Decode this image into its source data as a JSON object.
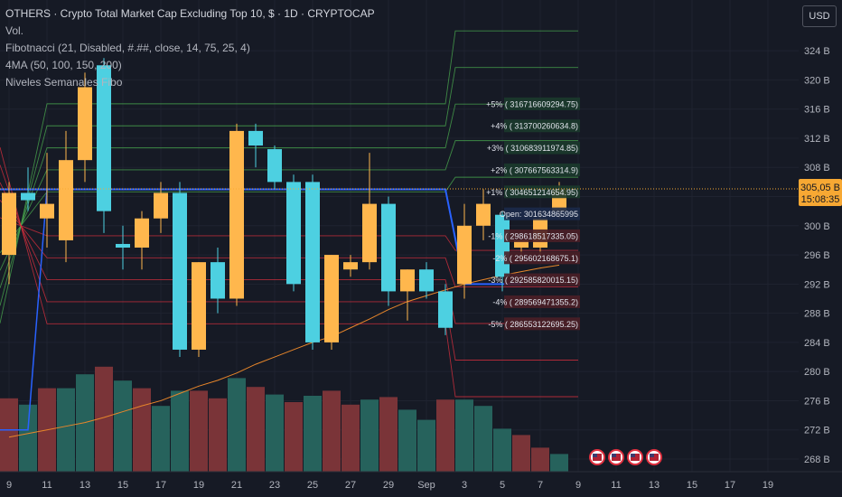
{
  "header": {
    "title": "OTHERS · Crypto Total Market Cap Excluding Top 10, $ · 1D · CRYPTOCAP",
    "indicators": [
      "Vol.",
      "Fibotnacci (21, Disabled, #.##, close, 14, 75, 25, 4)",
      "4MA (50, 100, 150, 200)",
      "Niveles Semanales Fibo"
    ]
  },
  "currency_button": "USD",
  "price_tag": {
    "price": "305,05 B",
    "countdown": "15:08:35"
  },
  "colors": {
    "bg": "#161a25",
    "grid": "#1f2330",
    "up": "#ffb74d",
    "down": "#4dd0e1",
    "vol_up": "#26625c",
    "vol_down": "#7a3438",
    "blue": "#2962ff",
    "ma": "#e8862a",
    "green_lvl": "#4caf50",
    "red_lvl": "#e0303f",
    "tag": "#f7a833",
    "muted": "#b2b5be"
  },
  "chart_data": {
    "type": "candlestick",
    "y_axis": {
      "unit": "B",
      "ylim": [
        266,
        326
      ],
      "ticks": [
        "324 B",
        "320 B",
        "316 B",
        "312 B",
        "308 B",
        "304 B",
        "300 B",
        "296 B",
        "292 B",
        "288 B",
        "284 B",
        "280 B",
        "276 B",
        "272 B",
        "268 B"
      ]
    },
    "x_axis": {
      "ticks": [
        "9",
        "11",
        "13",
        "15",
        "17",
        "19",
        "21",
        "23",
        "25",
        "27",
        "29",
        "Sep",
        "3",
        "5",
        "7",
        "9",
        "11",
        "13",
        "15",
        "17",
        "19"
      ]
    },
    "candles": [
      {
        "o": 296,
        "h": 306,
        "l": 292,
        "c": 304.5
      },
      {
        "o": 304.5,
        "h": 308,
        "l": 302,
        "c": 303.5
      },
      {
        "o": 301,
        "h": 310,
        "l": 297,
        "c": 303
      },
      {
        "o": 298,
        "h": 313,
        "l": 295,
        "c": 309
      },
      {
        "o": 309,
        "h": 321,
        "l": 306,
        "c": 319
      },
      {
        "o": 322,
        "h": 323,
        "l": 299,
        "c": 302
      },
      {
        "o": 297.5,
        "h": 300,
        "l": 294,
        "c": 297
      },
      {
        "o": 297,
        "h": 302,
        "l": 294,
        "c": 301
      },
      {
        "o": 301,
        "h": 306,
        "l": 299,
        "c": 304.5
      },
      {
        "o": 304.5,
        "h": 306,
        "l": 282,
        "c": 283
      },
      {
        "o": 283,
        "h": 295,
        "l": 282,
        "c": 295
      },
      {
        "o": 295,
        "h": 297,
        "l": 288,
        "c": 290
      },
      {
        "o": 290,
        "h": 314,
        "l": 289,
        "c": 313
      },
      {
        "o": 313,
        "h": 314,
        "l": 308,
        "c": 311
      },
      {
        "o": 310.5,
        "h": 311,
        "l": 305,
        "c": 306
      },
      {
        "o": 306,
        "h": 307,
        "l": 291,
        "c": 292
      },
      {
        "o": 306,
        "h": 307,
        "l": 283,
        "c": 284
      },
      {
        "o": 284,
        "h": 296,
        "l": 283,
        "c": 296
      },
      {
        "o": 294,
        "h": 296,
        "l": 293,
        "c": 295
      },
      {
        "o": 295,
        "h": 310,
        "l": 294,
        "c": 303
      },
      {
        "o": 303,
        "h": 304,
        "l": 289,
        "c": 291
      },
      {
        "o": 291,
        "h": 294,
        "l": 287,
        "c": 294
      },
      {
        "o": 294,
        "h": 295,
        "l": 290,
        "c": 291
      },
      {
        "o": 291,
        "h": 292,
        "l": 285,
        "c": 286
      },
      {
        "o": 292,
        "h": 303,
        "l": 290,
        "c": 300
      },
      {
        "o": 300,
        "h": 305,
        "l": 298,
        "c": 303
      },
      {
        "o": 301.5,
        "h": 302,
        "l": 291,
        "c": 293
      },
      {
        "o": 297,
        "h": 298,
        "l": 295,
        "c": 298
      },
      {
        "o": 297,
        "h": 302,
        "l": 296,
        "c": 301
      },
      {
        "o": 302,
        "h": 306,
        "l": 301,
        "c": 305
      }
    ],
    "volume": [
      {
        "v": 0.58,
        "dir": "down"
      },
      {
        "v": 0.53,
        "dir": "up"
      },
      {
        "v": 0.66,
        "dir": "down"
      },
      {
        "v": 0.66,
        "dir": "up"
      },
      {
        "v": 0.77,
        "dir": "up"
      },
      {
        "v": 0.83,
        "dir": "down"
      },
      {
        "v": 0.72,
        "dir": "up"
      },
      {
        "v": 0.66,
        "dir": "down"
      },
      {
        "v": 0.52,
        "dir": "up"
      },
      {
        "v": 0.64,
        "dir": "up"
      },
      {
        "v": 0.64,
        "dir": "down"
      },
      {
        "v": 0.58,
        "dir": "down"
      },
      {
        "v": 0.74,
        "dir": "up"
      },
      {
        "v": 0.67,
        "dir": "down"
      },
      {
        "v": 0.61,
        "dir": "up"
      },
      {
        "v": 0.55,
        "dir": "down"
      },
      {
        "v": 0.6,
        "dir": "up"
      },
      {
        "v": 0.64,
        "dir": "down"
      },
      {
        "v": 0.53,
        "dir": "down"
      },
      {
        "v": 0.57,
        "dir": "up"
      },
      {
        "v": 0.59,
        "dir": "down"
      },
      {
        "v": 0.49,
        "dir": "up"
      },
      {
        "v": 0.41,
        "dir": "up"
      },
      {
        "v": 0.57,
        "dir": "down"
      },
      {
        "v": 0.57,
        "dir": "up"
      },
      {
        "v": 0.52,
        "dir": "up"
      },
      {
        "v": 0.34,
        "dir": "up"
      },
      {
        "v": 0.29,
        "dir": "down"
      },
      {
        "v": 0.19,
        "dir": "down"
      },
      {
        "v": 0.14,
        "dir": "up"
      }
    ],
    "weekly_levels": [
      {
        "label": "+5% ( 316716609294.75)",
        "price": 316.72,
        "color": "green"
      },
      {
        "label": "+4% ( 313700260634.8)",
        "price": 313.7,
        "color": "green"
      },
      {
        "label": "+3% ( 310683911974.85)",
        "price": 310.68,
        "color": "green"
      },
      {
        "label": "+2% ( 307667563314.9)",
        "price": 307.67,
        "color": "green"
      },
      {
        "label": "+1% ( 304651214654.95)",
        "price": 304.65,
        "color": "green"
      },
      {
        "label": "Open: 301634865995",
        "price": 301.63,
        "color": "blue"
      },
      {
        "label": "-1% ( 298618517335.05)",
        "price": 298.62,
        "color": "red"
      },
      {
        "label": "-2% ( 295602168675.1)",
        "price": 295.6,
        "color": "red"
      },
      {
        "label": "-3% ( 292585820015.15)",
        "price": 292.59,
        "color": "red"
      },
      {
        "label": "-4% ( 289569471355.2)",
        "price": 289.57,
        "color": "red"
      },
      {
        "label": "-5% ( 286553122695.25)",
        "price": 286.55,
        "color": "red"
      }
    ],
    "blue_level_segments": [
      {
        "from": 0,
        "to": 23,
        "price": 305.0
      },
      {
        "from": 24,
        "to": 30,
        "price": 292.0
      }
    ],
    "ma_line": [
      271,
      271.5,
      272,
      272.5,
      273,
      273.7,
      274.5,
      275.3,
      276,
      277,
      278,
      278.8,
      279.8,
      281,
      282,
      283,
      284,
      284.8,
      286,
      287.2,
      288.5,
      289.6,
      290.4,
      291.2,
      292,
      292.6,
      293.2,
      293.7,
      294.2,
      294.6
    ]
  },
  "events": [
    {
      "name": "us-flag-icon-1"
    },
    {
      "name": "us-flag-icon-2"
    },
    {
      "name": "us-flag-icon-3"
    },
    {
      "name": "us-flag-icon-4"
    }
  ]
}
